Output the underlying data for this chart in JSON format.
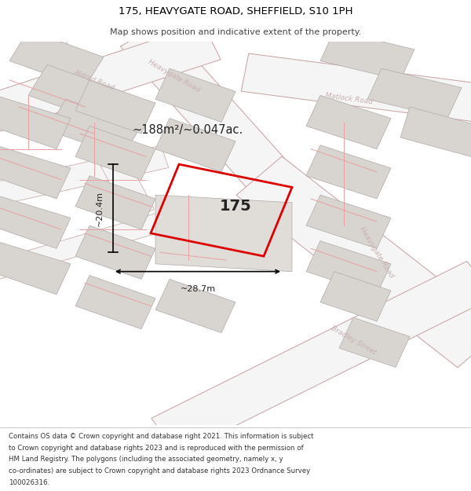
{
  "title_line1": "175, HEAVYGATE ROAD, SHEFFIELD, S10 1PH",
  "title_line2": "Map shows position and indicative extent of the property.",
  "footer_lines": [
    "Contains OS data © Crown copyright and database right 2021. This information is subject",
    "to Crown copyright and database rights 2023 and is reproduced with the permission of",
    "HM Land Registry. The polygons (including the associated geometry, namely x, y",
    "co-ordinates) are subject to Crown copyright and database rights 2023 Ordnance Survey",
    "100026316."
  ],
  "area_label": "~188m²/~0.047ac.",
  "property_number": "175",
  "dim_width": "~28.7m",
  "dim_height": "~20.4m",
  "map_bg": "#e8e6e4",
  "road_fill": "#f5f5f5",
  "road_edge": "#c8a0a0",
  "block_fill": "#d8d4d0",
  "block_edge": "#bbbbbb",
  "plot_line": "#e8a0a0",
  "red_plot": "#dd0000",
  "label_color": "#c8b0b0",
  "text_dark": "#222222"
}
